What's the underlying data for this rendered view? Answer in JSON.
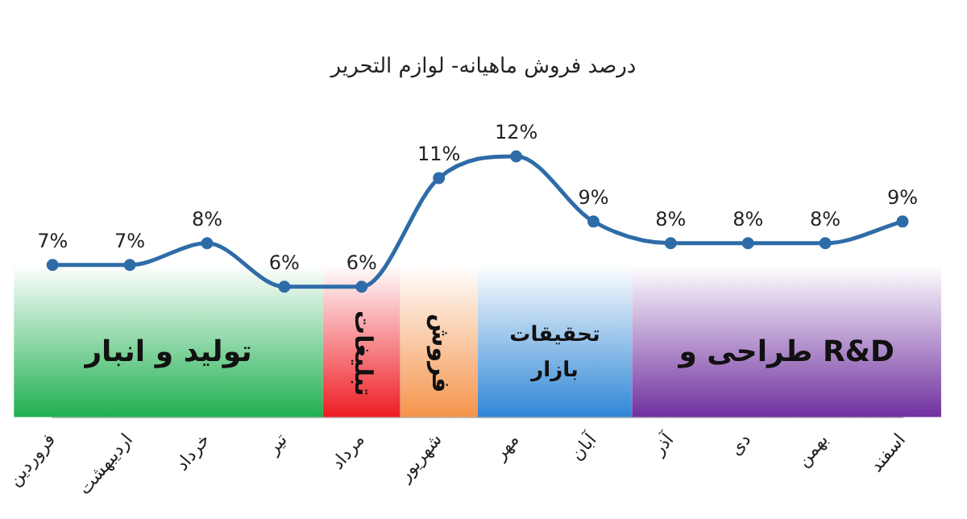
{
  "chart_data": {
    "type": "line",
    "title": "درصد فروش ماهیانه- لوازم التحریر",
    "categories": [
      "فروردین",
      "اردیبهشت",
      "خرداد",
      "تیر",
      "مرداد",
      "شهریور",
      "مهر",
      "آبان",
      "آذر",
      "دی",
      "بهمن",
      "اسفند"
    ],
    "series": [
      {
        "color": "#2e6ca8",
        "values": [
          7,
          7,
          8,
          6,
          6,
          11,
          12,
          9,
          8,
          8,
          8,
          9
        ],
        "value_labels": [
          "7%",
          "7%",
          "8%",
          "6%",
          "6%",
          "11%",
          "12%",
          "9%",
          "8%",
          "8%",
          "8%",
          "9%"
        ]
      }
    ],
    "tick_labels": "x",
    "grid": false,
    "legend": false,
    "marker": "circle",
    "bands": [
      {
        "axis": "x",
        "from": "فروردین",
        "to": "تیر",
        "label": "تولید و انبار",
        "color": "#1fb050"
      },
      {
        "axis": "x",
        "from": "مرداد",
        "to": "مرداد",
        "label": "تبلیغات",
        "color": "#ee1c24"
      },
      {
        "axis": "x",
        "from": "شهریور",
        "to": "شهریور",
        "label": "فروش",
        "color": "#f4944c"
      },
      {
        "axis": "x",
        "from": "مهر",
        "to": "آبان",
        "label": "تحقیقات بازار",
        "color": "#2f86d6"
      },
      {
        "axis": "x",
        "from": "آذر",
        "to": "اسفند",
        "label": "طراحی و R&D",
        "color": "#7030a0"
      }
    ]
  }
}
